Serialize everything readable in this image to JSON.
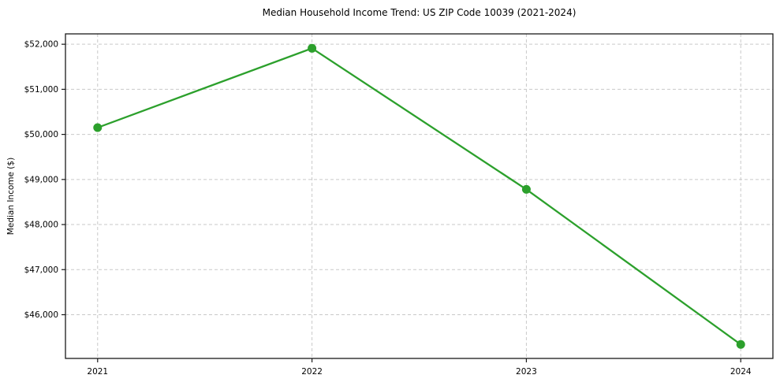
{
  "chart_data": {
    "type": "line",
    "title": "Median Household Income Trend: US ZIP Code 10039 (2021-2024)",
    "xlabel": "",
    "ylabel": "Median Income ($)",
    "x": [
      2021,
      2022,
      2023,
      2024
    ],
    "x_tick_labels": [
      "2021",
      "2022",
      "2023",
      "2024"
    ],
    "series": [
      {
        "name": "Median household income",
        "values": [
          50150,
          51910,
          48780,
          45340
        ],
        "color": "#2ca02c",
        "marker": "circle"
      }
    ],
    "y_ticks": [
      46000,
      47000,
      48000,
      49000,
      50000,
      51000,
      52000
    ],
    "y_tick_labels": [
      "$46,000",
      "$47,000",
      "$48,000",
      "$49,000",
      "$50,000",
      "$51,000",
      "$52,000"
    ],
    "ylim": [
      45030,
      52230
    ],
    "xlim": [
      2020.85,
      2024.15
    ],
    "grid": "both-dashed",
    "legend": "none",
    "colors": {
      "line": "#2ca02c",
      "grid": "#c9c9c9",
      "spine": "#1a1a1a",
      "background": "#ffffff",
      "tick_text": "#000000"
    }
  }
}
